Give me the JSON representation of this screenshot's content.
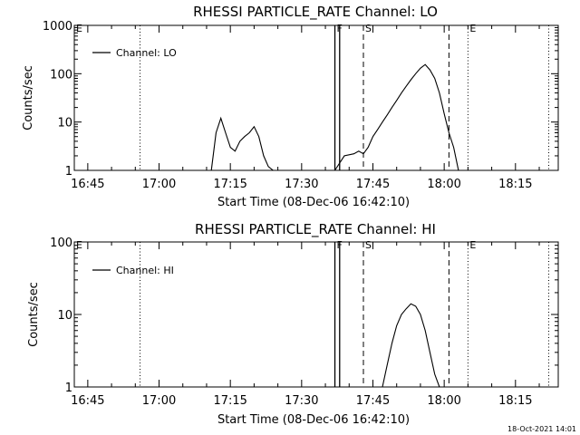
{
  "chart_data": [
    {
      "type": "line",
      "title": "RHESSI PARTICLE_RATE Channel: LO",
      "xlabel": "Start Time (08-Dec-06 16:42:10)",
      "ylabel": "Counts/sec",
      "yscale": "log",
      "ylim": [
        1,
        1000
      ],
      "xlim": [
        "16:42:10",
        "18:24:00"
      ],
      "x_ticks": [
        "16:45",
        "17:00",
        "17:15",
        "17:30",
        "17:45",
        "18:00",
        "18:15"
      ],
      "y_ticks": [
        "1",
        "10",
        "100",
        "1000"
      ],
      "legend": {
        "placement": "top-left",
        "entries": [
          "Channel: LO"
        ]
      },
      "grid": false,
      "markers": {
        "dotted": [
          "16:56",
          "18:05",
          "18:22"
        ],
        "solid": [
          "17:37",
          "17:38"
        ],
        "dashed": [
          "17:43",
          "18:01"
        ],
        "labels": [
          {
            "text": "E",
            "at": "16:42"
          },
          {
            "text": "F",
            "at": "17:37"
          },
          {
            "text": "S",
            "at": "17:43"
          },
          {
            "text": "E",
            "at": "18:05"
          }
        ]
      },
      "series": [
        {
          "x": [
            "17:11",
            "17:12",
            "17:13",
            "17:14",
            "17:15",
            "17:16",
            "17:17",
            "17:18",
            "17:19",
            "17:20",
            "17:21",
            "17:22",
            "17:23",
            "17:24",
            "17:37",
            "17:39",
            "17:41",
            "17:42",
            "17:43",
            "17:44",
            "17:45",
            "17:46",
            "17:47",
            "17:48",
            "17:49",
            "17:50",
            "17:51",
            "17:52",
            "17:53",
            "17:54",
            "17:55",
            "17:56",
            "17:57",
            "17:58",
            "17:59",
            "18:00",
            "18:01",
            "18:02",
            "18:03"
          ],
          "y": [
            1,
            6,
            12,
            6,
            3,
            2.5,
            4,
            5,
            6,
            8,
            5,
            2,
            1.2,
            1,
            1,
            2,
            2.2,
            2.5,
            2.2,
            3,
            5,
            7,
            10,
            14,
            20,
            28,
            40,
            55,
            75,
            100,
            130,
            155,
            120,
            80,
            40,
            15,
            6,
            3,
            1
          ]
        }
      ]
    },
    {
      "type": "line",
      "title": "RHESSI PARTICLE_RATE Channel: HI",
      "xlabel": "Start Time (08-Dec-06 16:42:10)",
      "ylabel": "Counts/sec",
      "yscale": "log",
      "ylim": [
        1,
        100
      ],
      "xlim": [
        "16:42:10",
        "18:24:00"
      ],
      "x_ticks": [
        "16:45",
        "17:00",
        "17:15",
        "17:30",
        "17:45",
        "18:00",
        "18:15"
      ],
      "y_ticks": [
        "1",
        "10",
        "100"
      ],
      "legend": {
        "placement": "top-left",
        "entries": [
          "Channel: HI"
        ]
      },
      "grid": false,
      "markers": {
        "dotted": [
          "16:56",
          "18:05",
          "18:22"
        ],
        "solid": [
          "17:37",
          "17:38"
        ],
        "dashed": [
          "17:43",
          "18:01"
        ],
        "labels": [
          {
            "text": "E",
            "at": "16:42"
          },
          {
            "text": "F",
            "at": "17:37"
          },
          {
            "text": "S",
            "at": "17:43"
          },
          {
            "text": "E",
            "at": "18:05"
          }
        ]
      },
      "series": [
        {
          "x": [
            "17:47",
            "17:48",
            "17:49",
            "17:50",
            "17:51",
            "17:52",
            "17:53",
            "17:54",
            "17:55",
            "17:56",
            "17:57",
            "17:58",
            "17:59"
          ],
          "y": [
            1,
            2,
            4,
            7,
            10,
            12,
            14,
            13,
            10,
            6,
            3,
            1.5,
            1
          ]
        }
      ]
    }
  ],
  "timestamp": "18-Oct-2021 14:01"
}
